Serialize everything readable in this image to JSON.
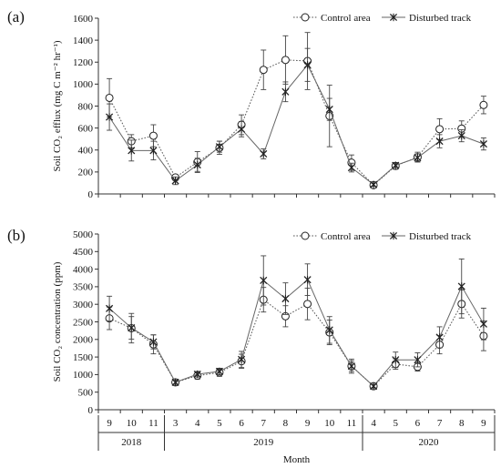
{
  "chart_data": {
    "x_axis": {
      "title": "Month",
      "months": [
        "9",
        "10",
        "11",
        "3",
        "4",
        "5",
        "6",
        "7",
        "8",
        "9",
        "10",
        "11",
        "4",
        "5",
        "6",
        "7",
        "8",
        "9"
      ],
      "years": [
        {
          "label": "2018",
          "from": 0,
          "to": 2
        },
        {
          "label": "2019",
          "from": 3,
          "to": 11
        },
        {
          "label": "2020",
          "from": 12,
          "to": 17
        }
      ]
    },
    "panels": [
      {
        "panel_label": "(a)",
        "type": "line",
        "ylabel": "Soil CO₂ efflux (mg C m⁻² hr⁻¹)",
        "ylim": [
          0,
          1600
        ],
        "yticks": [
          0,
          200,
          400,
          600,
          800,
          1000,
          1200,
          1400,
          1600
        ],
        "series": [
          {
            "name": "Control area",
            "marker": "circle",
            "line": "dotted",
            "values": [
              875,
              480,
              530,
              150,
              290,
              420,
              630,
              1130,
              1220,
              1210,
              710,
              285,
              80,
              255,
              335,
              590,
              595,
              810
            ],
            "errors": [
              175,
              60,
              100,
              25,
              95,
              60,
              90,
              180,
              220,
              260,
              280,
              70,
              20,
              30,
              45,
              95,
              70,
              80
            ]
          },
          {
            "name": "Disturbed track",
            "marker": "star",
            "line": "solid",
            "values": [
              700,
              395,
              395,
              120,
              265,
              430,
              590,
              365,
              930,
              1175,
              770,
              240,
              85,
              260,
              330,
              480,
              530,
              455
            ],
            "errors": [
              120,
              95,
              85,
              35,
              60,
              50,
              70,
              45,
              90,
              150,
              100,
              40,
              15,
              20,
              35,
              60,
              55,
              55
            ]
          }
        ]
      },
      {
        "panel_label": "(b)",
        "type": "line",
        "ylabel": "Soil CO₂ concentration (ppm)",
        "ylim": [
          0,
          5000
        ],
        "yticks": [
          0,
          500,
          1000,
          1500,
          2000,
          2500,
          3000,
          3500,
          4000,
          4500,
          5000
        ],
        "series": [
          {
            "name": "Control area",
            "marker": "circle",
            "line": "dotted",
            "values": [
              2600,
              2320,
              1860,
              780,
              970,
              1060,
              1380,
              3130,
              2660,
              3010,
              2200,
              1240,
              670,
              1300,
              1220,
              1850,
              3010,
              2100
            ],
            "errors": [
              320,
              420,
              270,
              80,
              100,
              110,
              200,
              350,
              300,
              450,
              350,
              200,
              60,
              150,
              120,
              260,
              400,
              420
            ]
          },
          {
            "name": "Disturbed track",
            "marker": "star",
            "line": "solid",
            "values": [
              2880,
              2330,
              1930,
              780,
              1010,
              1090,
              1430,
              3680,
              3160,
              3700,
              2270,
              1240,
              670,
              1420,
              1420,
              2060,
              3510,
              2440
            ],
            "errors": [
              350,
              320,
              200,
              60,
              80,
              90,
              230,
              700,
              450,
              450,
              380,
              150,
              50,
              220,
              200,
              300,
              780,
              450
            ]
          }
        ]
      }
    ]
  }
}
